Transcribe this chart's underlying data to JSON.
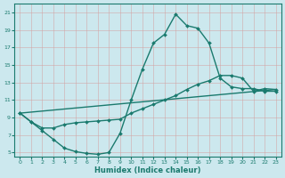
{
  "title": "",
  "xlabel": "Humidex (Indice chaleur)",
  "ylabel": "",
  "xlim": [
    -0.5,
    23.5
  ],
  "ylim": [
    4.5,
    22
  ],
  "yticks": [
    5,
    7,
    9,
    11,
    13,
    15,
    17,
    19,
    21
  ],
  "xticks": [
    0,
    1,
    2,
    3,
    4,
    5,
    6,
    7,
    8,
    9,
    10,
    11,
    12,
    13,
    14,
    15,
    16,
    17,
    18,
    19,
    20,
    21,
    22,
    23
  ],
  "bg_color": "#cce8ee",
  "grid_color": "#b0cdd5",
  "line_color": "#1a7a6e",
  "series": [
    {
      "x": [
        0,
        1,
        2,
        3,
        4,
        5,
        6,
        7,
        8,
        9,
        10,
        11,
        12,
        13,
        14,
        15,
        16,
        17,
        18,
        19,
        20,
        21,
        22,
        23
      ],
      "y": [
        9.5,
        8.5,
        7.5,
        6.5,
        5.5,
        5.1,
        4.9,
        4.8,
        5.0,
        7.2,
        11.0,
        14.5,
        17.5,
        18.5,
        20.8,
        19.5,
        19.2,
        17.5,
        13.5,
        12.5,
        12.3,
        12.3,
        12.0,
        12.0
      ],
      "marker": "D",
      "markersize": 2.0,
      "linewidth": 1.0
    },
    {
      "x": [
        0,
        1,
        2,
        3,
        4,
        5,
        6,
        7,
        8,
        9,
        10,
        11,
        12,
        13,
        14,
        15,
        16,
        17,
        18,
        19,
        20,
        21,
        22,
        23
      ],
      "y": [
        9.5,
        8.5,
        7.8,
        7.8,
        8.2,
        8.4,
        8.5,
        8.6,
        8.7,
        8.8,
        9.5,
        10.0,
        10.5,
        11.0,
        11.5,
        12.2,
        12.8,
        13.2,
        13.8,
        13.8,
        13.5,
        12.0,
        12.3,
        12.2
      ],
      "marker": "D",
      "markersize": 2.0,
      "linewidth": 1.0
    },
    {
      "x": [
        0,
        23
      ],
      "y": [
        9.5,
        12.2
      ],
      "marker": null,
      "markersize": 0,
      "linewidth": 1.0
    }
  ]
}
